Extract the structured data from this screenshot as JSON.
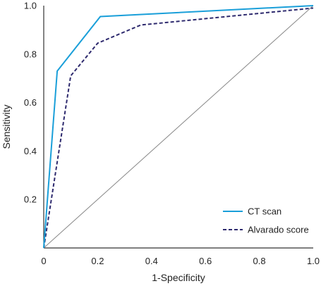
{
  "chart_data": {
    "type": "line",
    "title": "",
    "xlabel": "1-Specificity",
    "ylabel": "Sensitivity",
    "xlim": [
      0,
      1.0
    ],
    "ylim": [
      0,
      1.0
    ],
    "xticks": [
      0,
      0.2,
      0.4,
      0.6,
      0.8,
      1.0
    ],
    "xtick_labels": [
      "0",
      "0.2",
      "0.4",
      "0.6",
      "0.8",
      "1.0"
    ],
    "yticks": [
      0.2,
      0.4,
      0.6,
      0.8,
      1.0
    ],
    "ytick_labels": [
      "0.2",
      "0.4",
      "0.6",
      "0.8",
      "1.0"
    ],
    "grid": false,
    "legend_position": "bottom-right",
    "series": [
      {
        "name": "CT scan",
        "color": "#1a9fd9",
        "line_style": "solid",
        "x": [
          0,
          0.05,
          0.21,
          1.0
        ],
        "y": [
          0,
          0.73,
          0.955,
          1.0
        ]
      },
      {
        "name": "Alvarado score",
        "color": "#2e2a6e",
        "line_style": "dashed",
        "x": [
          0,
          0.1,
          0.2,
          0.36,
          1.0
        ],
        "y": [
          0,
          0.71,
          0.845,
          0.92,
          0.99
        ]
      },
      {
        "name": "",
        "color": "#888888",
        "line_style": "solid",
        "x": [
          0,
          1.0
        ],
        "y": [
          0,
          1.0
        ]
      }
    ]
  }
}
